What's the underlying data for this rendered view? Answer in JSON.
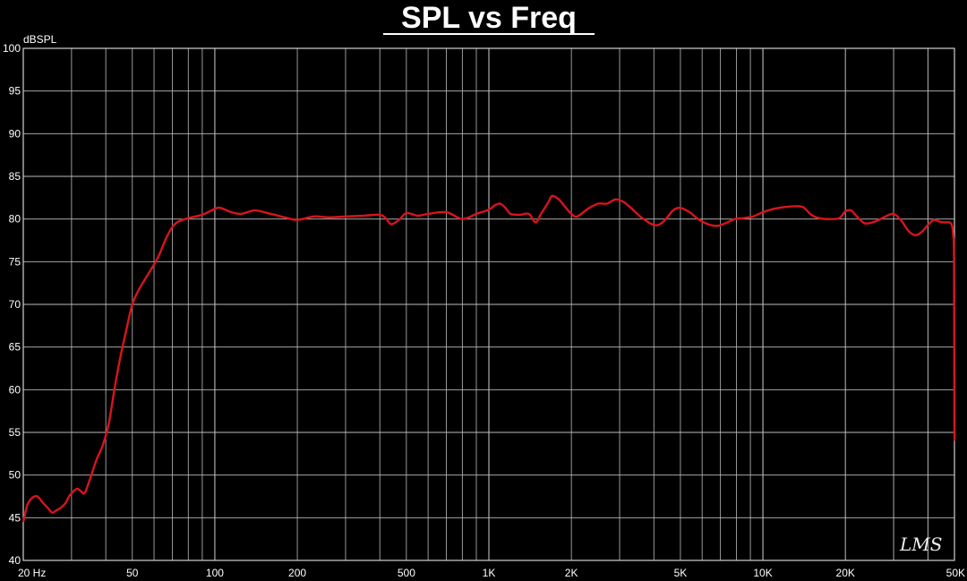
{
  "colors": {
    "background": "#000000",
    "grid": "#bdbdbd",
    "trace": "#d8141c",
    "text": "#ffffff"
  },
  "chart_data": {
    "type": "line",
    "title": "SPL vs Freq",
    "ylabel": "dBSPL",
    "xlabel": "",
    "x_scale": "log",
    "xlim": [
      20,
      50000
    ],
    "ylim": [
      40,
      100
    ],
    "grid": true,
    "legend": "none",
    "x_tick_labels": [
      {
        "value": 20,
        "label": "20  Hz"
      },
      {
        "value": 50,
        "label": "50"
      },
      {
        "value": 100,
        "label": "100"
      },
      {
        "value": 200,
        "label": "200"
      },
      {
        "value": 500,
        "label": "500"
      },
      {
        "value": 1000,
        "label": "1K"
      },
      {
        "value": 2000,
        "label": "2K"
      },
      {
        "value": 5000,
        "label": "5K"
      },
      {
        "value": 10000,
        "label": "10K"
      },
      {
        "value": 20000,
        "label": "20K"
      },
      {
        "value": 50000,
        "label": "50K"
      }
    ],
    "y_tick_labels": [
      "40",
      "45",
      "50",
      "55",
      "60",
      "65",
      "70",
      "75",
      "80",
      "85",
      "90",
      "95",
      "100"
    ],
    "series": [
      {
        "color": "#d8141c",
        "points": [
          [
            20,
            44.5
          ],
          [
            20.7,
            46.5
          ],
          [
            21.5,
            47.3
          ],
          [
            22.5,
            47.5
          ],
          [
            23.5,
            46.8
          ],
          [
            24.5,
            46.2
          ],
          [
            25.5,
            45.6
          ],
          [
            26.5,
            45.9
          ],
          [
            27.5,
            46.2
          ],
          [
            28.5,
            46.7
          ],
          [
            29.5,
            47.6
          ],
          [
            30.5,
            48.1
          ],
          [
            31.5,
            48.4
          ],
          [
            32.5,
            48.1
          ],
          [
            33.5,
            47.9
          ],
          [
            35,
            49.5
          ],
          [
            37,
            51.8
          ],
          [
            39,
            53.5
          ],
          [
            41,
            56
          ],
          [
            43,
            60
          ],
          [
            45,
            63.5
          ],
          [
            47,
            66.3
          ],
          [
            50,
            70
          ],
          [
            53,
            71.8
          ],
          [
            57,
            73.5
          ],
          [
            62,
            75.5
          ],
          [
            67,
            78
          ],
          [
            72,
            79.5
          ],
          [
            80,
            80.1
          ],
          [
            90,
            80.5
          ],
          [
            100,
            81.2
          ],
          [
            105,
            81.3
          ],
          [
            115,
            80.8
          ],
          [
            125,
            80.6
          ],
          [
            140,
            81
          ],
          [
            160,
            80.6
          ],
          [
            180,
            80.2
          ],
          [
            200,
            79.9
          ],
          [
            230,
            80.3
          ],
          [
            260,
            80.2
          ],
          [
            300,
            80.3
          ],
          [
            350,
            80.4
          ],
          [
            400,
            80.5
          ],
          [
            420,
            80.1
          ],
          [
            440,
            79.4
          ],
          [
            470,
            79.9
          ],
          [
            500,
            80.7
          ],
          [
            550,
            80.4
          ],
          [
            600,
            80.6
          ],
          [
            700,
            80.8
          ],
          [
            800,
            80
          ],
          [
            900,
            80.6
          ],
          [
            1000,
            81.1
          ],
          [
            1050,
            81.6
          ],
          [
            1100,
            81.8
          ],
          [
            1150,
            81.3
          ],
          [
            1200,
            80.6
          ],
          [
            1300,
            80.5
          ],
          [
            1400,
            80.6
          ],
          [
            1480,
            79.6
          ],
          [
            1550,
            80.6
          ],
          [
            1650,
            82
          ],
          [
            1700,
            82.7
          ],
          [
            1800,
            82.3
          ],
          [
            1900,
            81.4
          ],
          [
            2000,
            80.6
          ],
          [
            2100,
            80.3
          ],
          [
            2300,
            81.2
          ],
          [
            2500,
            81.8
          ],
          [
            2700,
            81.8
          ],
          [
            2900,
            82.3
          ],
          [
            3100,
            82
          ],
          [
            3300,
            81.3
          ],
          [
            3600,
            80.2
          ],
          [
            4000,
            79.3
          ],
          [
            4300,
            79.6
          ],
          [
            4700,
            81
          ],
          [
            5000,
            81.3
          ],
          [
            5400,
            80.8
          ],
          [
            5800,
            80
          ],
          [
            6300,
            79.4
          ],
          [
            6800,
            79.2
          ],
          [
            7300,
            79.5
          ],
          [
            7900,
            80
          ],
          [
            8500,
            80.1
          ],
          [
            9200,
            80.3
          ],
          [
            10000,
            80.8
          ],
          [
            11000,
            81.2
          ],
          [
            12000,
            81.4
          ],
          [
            13000,
            81.5
          ],
          [
            14000,
            81.4
          ],
          [
            15000,
            80.5
          ],
          [
            16000,
            80.1
          ],
          [
            17500,
            80
          ],
          [
            19000,
            80.1
          ],
          [
            20000,
            80.9
          ],
          [
            21000,
            81
          ],
          [
            22000,
            80.3
          ],
          [
            23500,
            79.5
          ],
          [
            25000,
            79.6
          ],
          [
            26500,
            79.9
          ],
          [
            28000,
            80.3
          ],
          [
            30000,
            80.6
          ],
          [
            32000,
            79.8
          ],
          [
            34000,
            78.6
          ],
          [
            36000,
            78.1
          ],
          [
            38000,
            78.5
          ],
          [
            40000,
            79.3
          ],
          [
            42000,
            79.9
          ],
          [
            44000,
            79.7
          ],
          [
            46000,
            79.6
          ],
          [
            48000,
            79.6
          ],
          [
            49000,
            79.2
          ],
          [
            49500,
            78
          ],
          [
            49800,
            75
          ],
          [
            50000,
            54
          ]
        ]
      }
    ]
  },
  "logo_text": "LMS"
}
